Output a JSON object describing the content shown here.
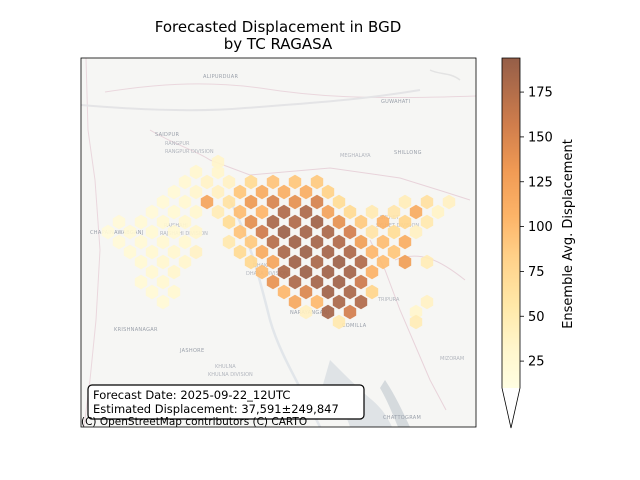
{
  "title_line1": "Forecasted Displacement in BGD",
  "title_line2": "by TC RAGASA",
  "info_box": {
    "forecast_date": "Forecast Date: 2025-09-22_12UTC",
    "estimated_displacement": "Estimated Displacement: 37,591±249,847"
  },
  "attribution": "(C) OpenStreetMap contributors (C) CARTO",
  "colorbar": {
    "label": "Ensemble Avg. Displacement",
    "min": 10,
    "max": 194,
    "ticks": [
      "25",
      "50",
      "75",
      "100",
      "125",
      "150",
      "175"
    ],
    "tick_values": [
      25,
      50,
      75,
      100,
      125,
      150,
      175
    ],
    "colors": [
      "#fffee2",
      "#fff0c0",
      "#ffd990",
      "#fdb468",
      "#eb9650",
      "#c8744a",
      "#955e48"
    ],
    "extend": "min"
  },
  "basemap_labels": [
    "ALIPURDUAR",
    "GUWAHATI",
    "SAIDPUR",
    "RANGPUR",
    "RANGPUR DIVISION",
    "MEGHALAYA",
    "SHILLONG",
    "SYLHET",
    "SYLHET DIVISION",
    "RAJSHAHI",
    "RAJSHAHI DIVISION",
    "CHAPAINAWABGANJ",
    "DHAKA",
    "DHAKA DIVISION",
    "NARAYANGANJ",
    "COMILLA",
    "TRIPURA",
    "KRISHNANAGAR",
    "JASHORE",
    "KHULNA",
    "KHULNA DIVISION",
    "CHATTOGRAM",
    "MIZORAM"
  ],
  "chart_data": {
    "type": "hexbin",
    "colorscale": "YlOrBr",
    "color_range": [
      10,
      194
    ],
    "cells": [
      [
        218,
        162,
        32
      ],
      [
        196,
        172,
        28
      ],
      [
        218,
        172,
        30
      ],
      [
        185,
        182,
        25
      ],
      [
        207,
        182,
        36
      ],
      [
        229,
        182,
        38
      ],
      [
        251,
        182,
        70
      ],
      [
        273,
        182,
        90
      ],
      [
        295,
        182,
        88
      ],
      [
        317,
        182,
        85
      ],
      [
        174,
        192,
        22
      ],
      [
        196,
        192,
        30
      ],
      [
        218,
        192,
        40
      ],
      [
        240,
        192,
        88
      ],
      [
        262,
        192,
        112
      ],
      [
        284,
        192,
        108
      ],
      [
        306,
        192,
        110
      ],
      [
        328,
        192,
        78
      ],
      [
        163,
        202,
        22
      ],
      [
        185,
        202,
        26
      ],
      [
        207,
        202,
        118
      ],
      [
        229,
        202,
        60
      ],
      [
        251,
        202,
        130
      ],
      [
        273,
        202,
        150
      ],
      [
        295,
        202,
        138
      ],
      [
        317,
        202,
        152
      ],
      [
        339,
        202,
        68
      ],
      [
        405,
        202,
        45
      ],
      [
        427,
        202,
        62
      ],
      [
        449,
        202,
        40
      ],
      [
        152,
        212,
        20
      ],
      [
        174,
        212,
        24
      ],
      [
        196,
        212,
        28
      ],
      [
        218,
        212,
        48
      ],
      [
        240,
        212,
        95
      ],
      [
        262,
        212,
        102
      ],
      [
        284,
        212,
        178
      ],
      [
        306,
        212,
        180
      ],
      [
        328,
        212,
        120
      ],
      [
        350,
        212,
        70
      ],
      [
        372,
        212,
        50
      ],
      [
        394,
        212,
        55
      ],
      [
        416,
        212,
        112
      ],
      [
        438,
        212,
        35
      ],
      [
        119,
        222,
        20
      ],
      [
        141,
        222,
        22
      ],
      [
        163,
        222,
        25
      ],
      [
        185,
        222,
        28
      ],
      [
        229,
        222,
        68
      ],
      [
        251,
        222,
        140
      ],
      [
        273,
        222,
        182
      ],
      [
        295,
        222,
        178
      ],
      [
        317,
        222,
        188
      ],
      [
        339,
        222,
        138
      ],
      [
        361,
        222,
        85
      ],
      [
        383,
        222,
        105
      ],
      [
        405,
        222,
        75
      ],
      [
        427,
        222,
        52
      ],
      [
        108,
        232,
        18
      ],
      [
        130,
        232,
        22
      ],
      [
        152,
        232,
        24
      ],
      [
        174,
        232,
        25
      ],
      [
        196,
        232,
        30
      ],
      [
        240,
        232,
        90
      ],
      [
        262,
        232,
        158
      ],
      [
        284,
        232,
        190
      ],
      [
        306,
        232,
        185
      ],
      [
        328,
        232,
        182
      ],
      [
        350,
        232,
        155
      ],
      [
        372,
        232,
        58
      ],
      [
        394,
        232,
        68
      ],
      [
        416,
        232,
        40
      ],
      [
        119,
        242,
        20
      ],
      [
        141,
        242,
        22
      ],
      [
        163,
        242,
        25
      ],
      [
        185,
        242,
        26
      ],
      [
        229,
        242,
        52
      ],
      [
        251,
        242,
        85
      ],
      [
        273,
        242,
        175
      ],
      [
        295,
        242,
        188
      ],
      [
        317,
        242,
        185
      ],
      [
        339,
        242,
        178
      ],
      [
        361,
        242,
        125
      ],
      [
        383,
        242,
        95
      ],
      [
        405,
        242,
        110
      ],
      [
        130,
        252,
        22
      ],
      [
        152,
        252,
        26
      ],
      [
        174,
        252,
        28
      ],
      [
        196,
        252,
        38
      ],
      [
        240,
        252,
        70
      ],
      [
        262,
        252,
        112
      ],
      [
        284,
        252,
        182
      ],
      [
        306,
        252,
        190
      ],
      [
        328,
        252,
        185
      ],
      [
        350,
        252,
        180
      ],
      [
        372,
        252,
        100
      ],
      [
        394,
        252,
        88
      ],
      [
        141,
        262,
        24
      ],
      [
        163,
        262,
        28
      ],
      [
        185,
        262,
        30
      ],
      [
        251,
        262,
        72
      ],
      [
        273,
        262,
        118
      ],
      [
        295,
        262,
        188
      ],
      [
        317,
        262,
        182
      ],
      [
        339,
        262,
        190
      ],
      [
        361,
        262,
        178
      ],
      [
        383,
        262,
        95
      ],
      [
        405,
        262,
        125
      ],
      [
        427,
        262,
        48
      ],
      [
        152,
        272,
        25
      ],
      [
        174,
        272,
        30
      ],
      [
        262,
        272,
        95
      ],
      [
        284,
        272,
        182
      ],
      [
        306,
        272,
        190
      ],
      [
        328,
        272,
        188
      ],
      [
        350,
        272,
        185
      ],
      [
        372,
        272,
        105
      ],
      [
        141,
        282,
        22
      ],
      [
        163,
        282,
        26
      ],
      [
        273,
        282,
        135
      ],
      [
        295,
        282,
        180
      ],
      [
        317,
        282,
        185
      ],
      [
        339,
        282,
        188
      ],
      [
        361,
        282,
        160
      ],
      [
        152,
        292,
        22
      ],
      [
        174,
        292,
        26
      ],
      [
        284,
        292,
        100
      ],
      [
        306,
        292,
        148
      ],
      [
        328,
        292,
        188
      ],
      [
        350,
        292,
        182
      ],
      [
        372,
        292,
        75
      ],
      [
        163,
        302,
        22
      ],
      [
        295,
        302,
        115
      ],
      [
        317,
        302,
        98
      ],
      [
        339,
        302,
        182
      ],
      [
        361,
        302,
        178
      ],
      [
        427,
        302,
        38
      ],
      [
        306,
        312,
        40
      ],
      [
        328,
        312,
        185
      ],
      [
        350,
        312,
        155
      ],
      [
        416,
        312,
        30
      ],
      [
        339,
        322,
        52
      ],
      [
        416,
        322,
        48
      ]
    ]
  }
}
